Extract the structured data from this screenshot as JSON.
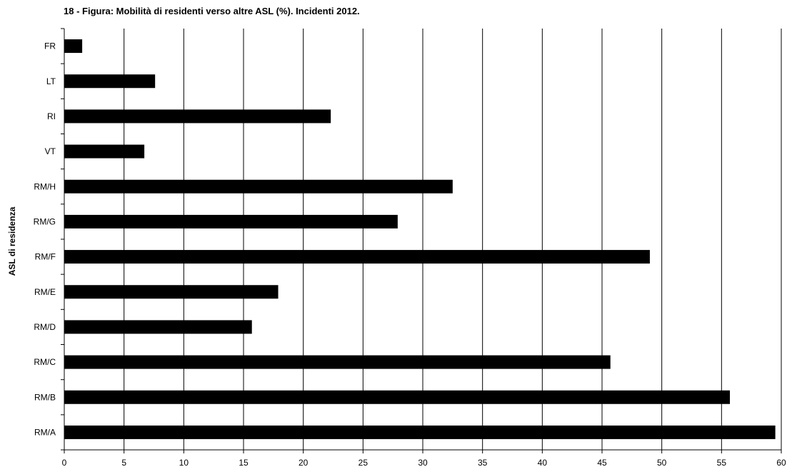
{
  "chart_data": {
    "type": "bar",
    "orientation": "horizontal",
    "title": "18 - Figura: Mobilità di residenti verso altre ASL (%). Incidenti 2012.",
    "xlabel": "",
    "ylabel": "ASL di residenza",
    "xlim": [
      0,
      60
    ],
    "x_ticks": [
      "0",
      "5",
      "10",
      "15",
      "20",
      "25",
      "30",
      "35",
      "40",
      "45",
      "50",
      "55",
      "60"
    ],
    "grid": "vertical",
    "bar_color": "#000000",
    "categories": [
      "FR",
      "LT",
      "RI",
      "VT",
      "RM/H",
      "RM/G",
      "RM/F",
      "RM/E",
      "RM/D",
      "RM/C",
      "RM/B",
      "RM/A"
    ],
    "values": [
      1.5,
      7.6,
      22.3,
      6.7,
      32.5,
      27.9,
      49.0,
      17.9,
      15.7,
      45.7,
      55.7,
      59.5
    ]
  }
}
